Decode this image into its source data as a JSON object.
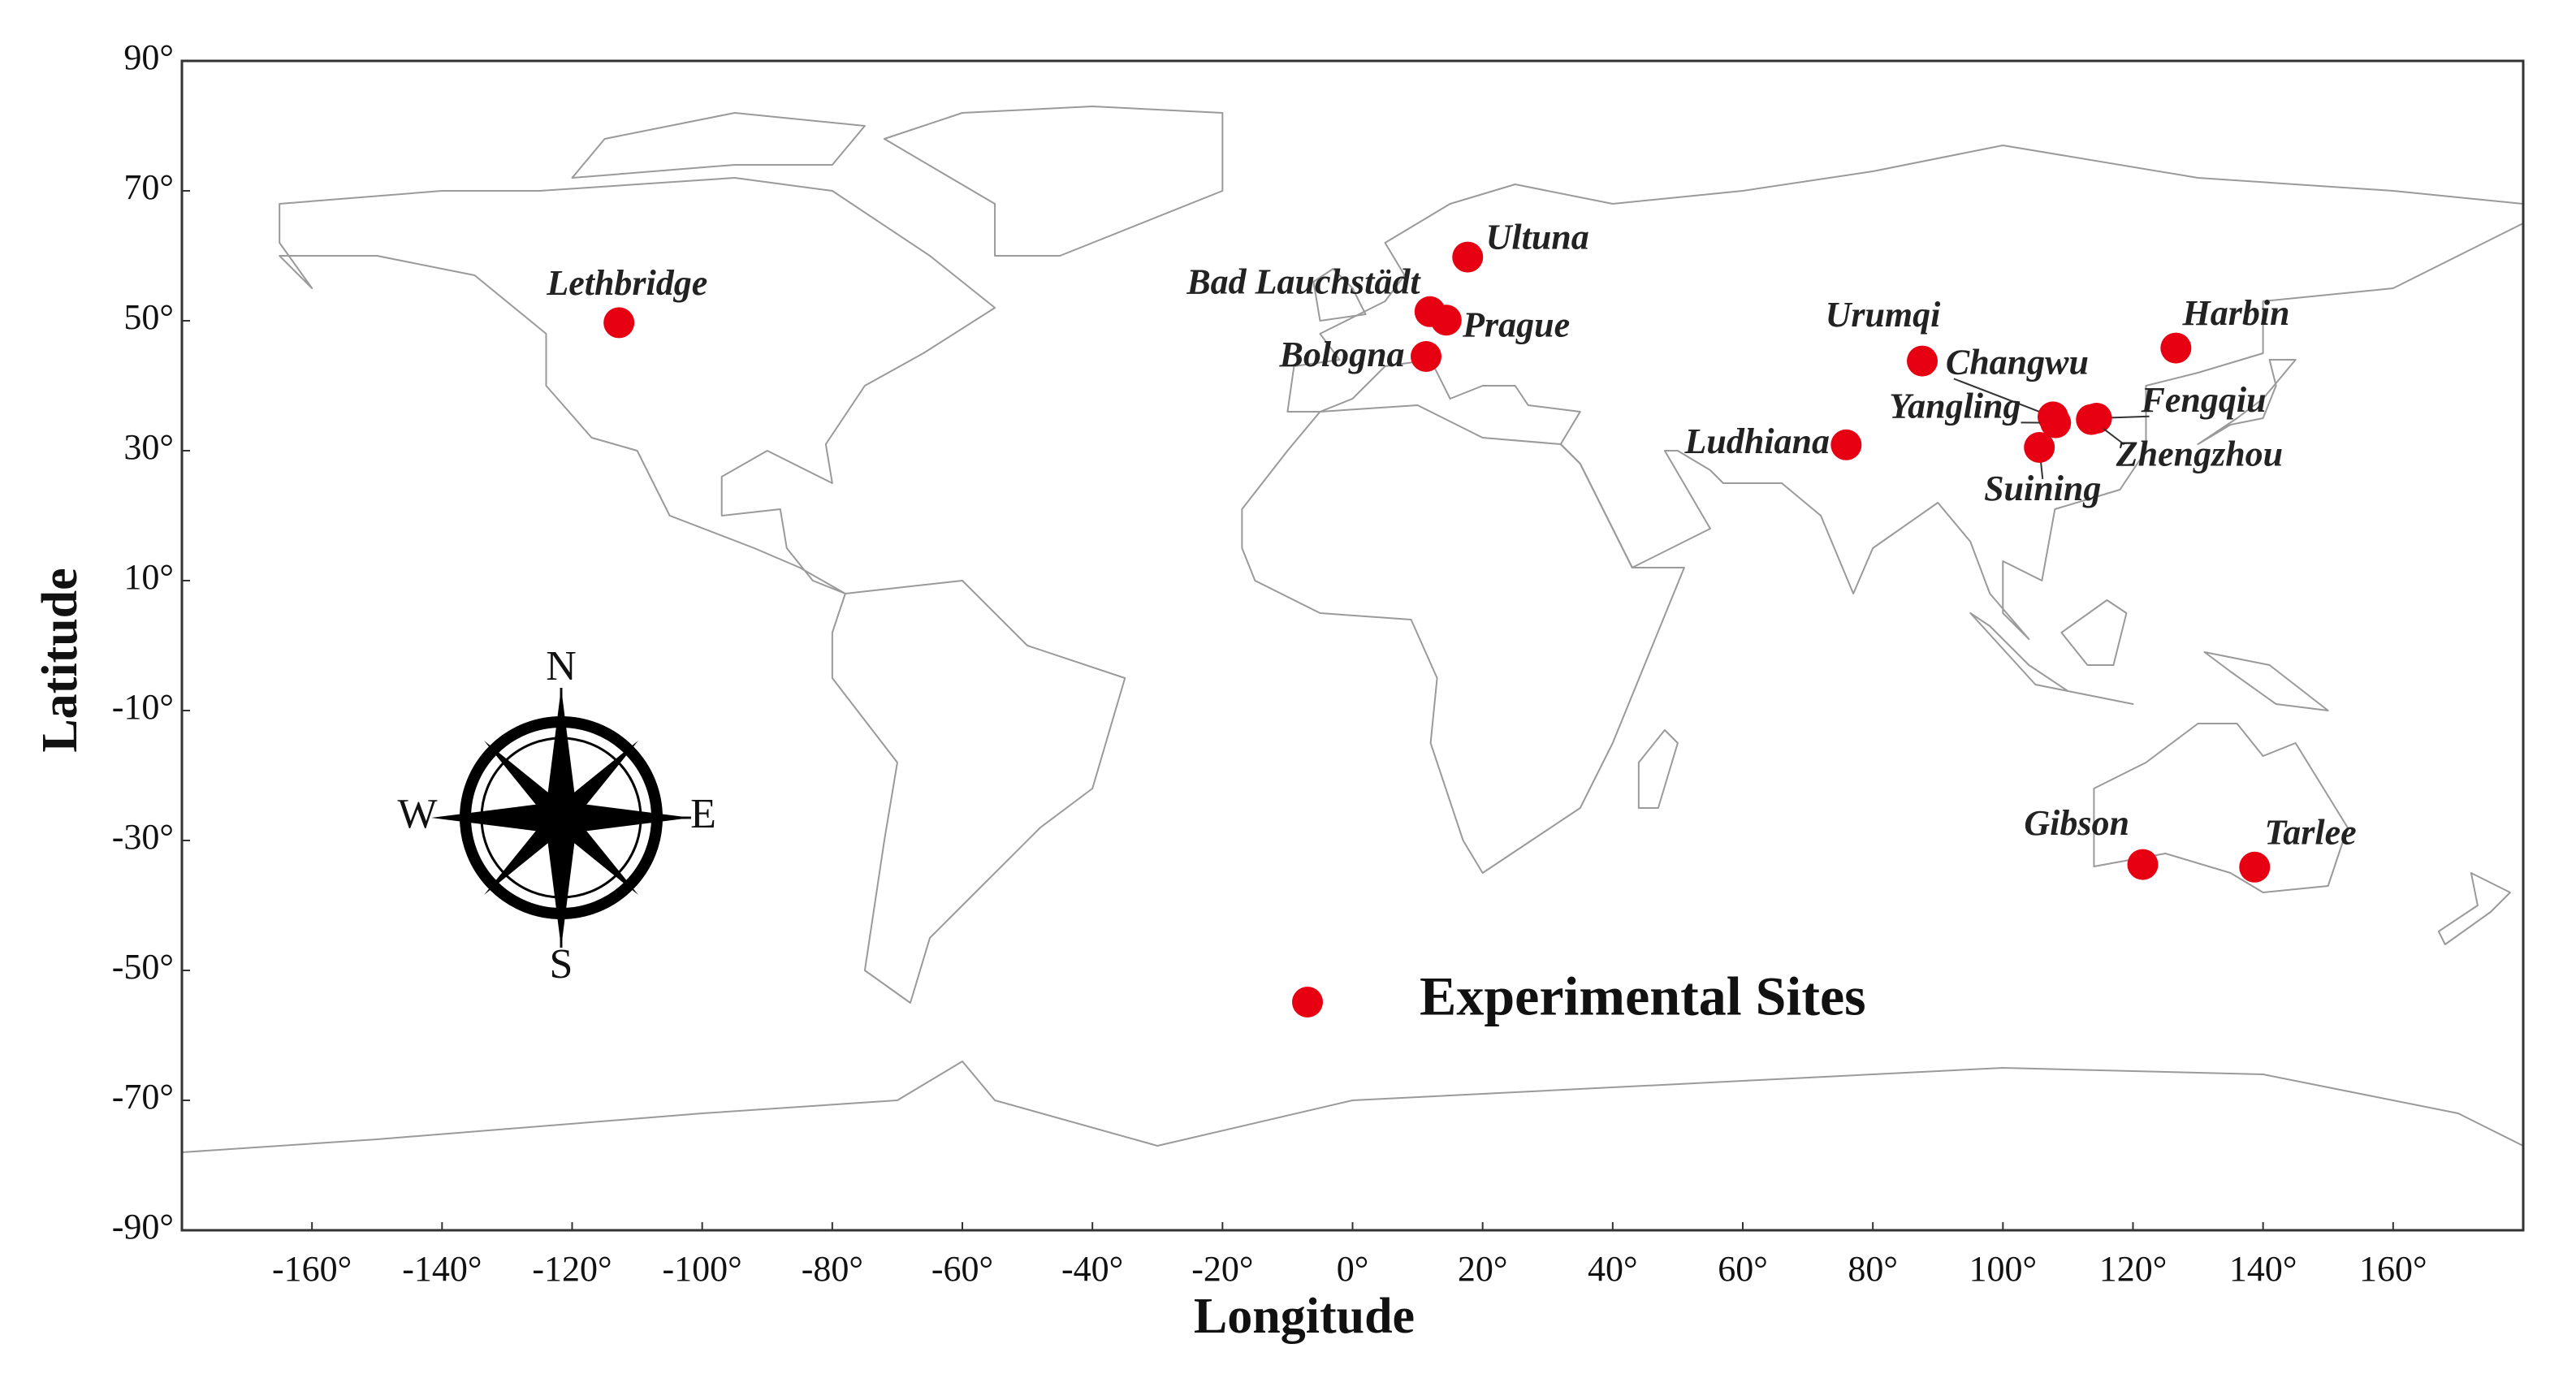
{
  "chart_data": {
    "type": "scatter",
    "x_label": "Longitude",
    "y_label": "Latitude",
    "xlim": [
      -180,
      180
    ],
    "ylim": [
      -90,
      90
    ],
    "xticks": [
      {
        "value": -160,
        "label": "-160°"
      },
      {
        "value": -140,
        "label": "-140°"
      },
      {
        "value": -120,
        "label": "-120°"
      },
      {
        "value": -100,
        "label": "-100°"
      },
      {
        "value": -80,
        "label": "-80°"
      },
      {
        "value": -60,
        "label": "-60°"
      },
      {
        "value": -40,
        "label": "-40°"
      },
      {
        "value": -20,
        "label": "-20°"
      },
      {
        "value": 0,
        "label": "0°"
      },
      {
        "value": 20,
        "label": "20°"
      },
      {
        "value": 40,
        "label": "40°"
      },
      {
        "value": 60,
        "label": "60°"
      },
      {
        "value": 80,
        "label": "80°"
      },
      {
        "value": 100,
        "label": "100°"
      },
      {
        "value": 120,
        "label": "120°"
      },
      {
        "value": 140,
        "label": "140°"
      },
      {
        "value": 160,
        "label": "160°"
      }
    ],
    "yticks": [
      {
        "value": 90,
        "label": "90°"
      },
      {
        "value": 70,
        "label": "70°"
      },
      {
        "value": 50,
        "label": "50°"
      },
      {
        "value": 30,
        "label": "30°"
      },
      {
        "value": 10,
        "label": "10°"
      },
      {
        "value": -10,
        "label": "-10°"
      },
      {
        "value": -30,
        "label": "-30°"
      },
      {
        "value": -50,
        "label": "-50°"
      },
      {
        "value": -70,
        "label": "-70°"
      },
      {
        "value": -90,
        "label": "-90°"
      }
    ],
    "compass": [
      "N",
      "S",
      "W",
      "E"
    ],
    "series": [
      {
        "name": "Experimental Sites",
        "color": "#e60012",
        "labels": [
          "Lethbridge",
          "Ultuna",
          "Bad Lauchstädt",
          "Prague",
          "Bologna",
          "Urumqi",
          "Harbin",
          "Changwu",
          "Yangling",
          "Fengqiu",
          "Zhengzhou",
          "Suining",
          "Ludhiana",
          "Gibson",
          "Tarlee"
        ],
        "x": [
          -112.8,
          17.7,
          11.9,
          14.4,
          11.3,
          87.6,
          126.6,
          107.7,
          108.1,
          114.4,
          113.6,
          105.6,
          75.9,
          121.5,
          138.7
        ],
        "values": [
          49.7,
          59.8,
          51.4,
          50.1,
          44.5,
          43.8,
          45.8,
          35.2,
          34.3,
          35.0,
          34.8,
          30.5,
          30.9,
          -33.7,
          -34.1
        ]
      }
    ]
  }
}
